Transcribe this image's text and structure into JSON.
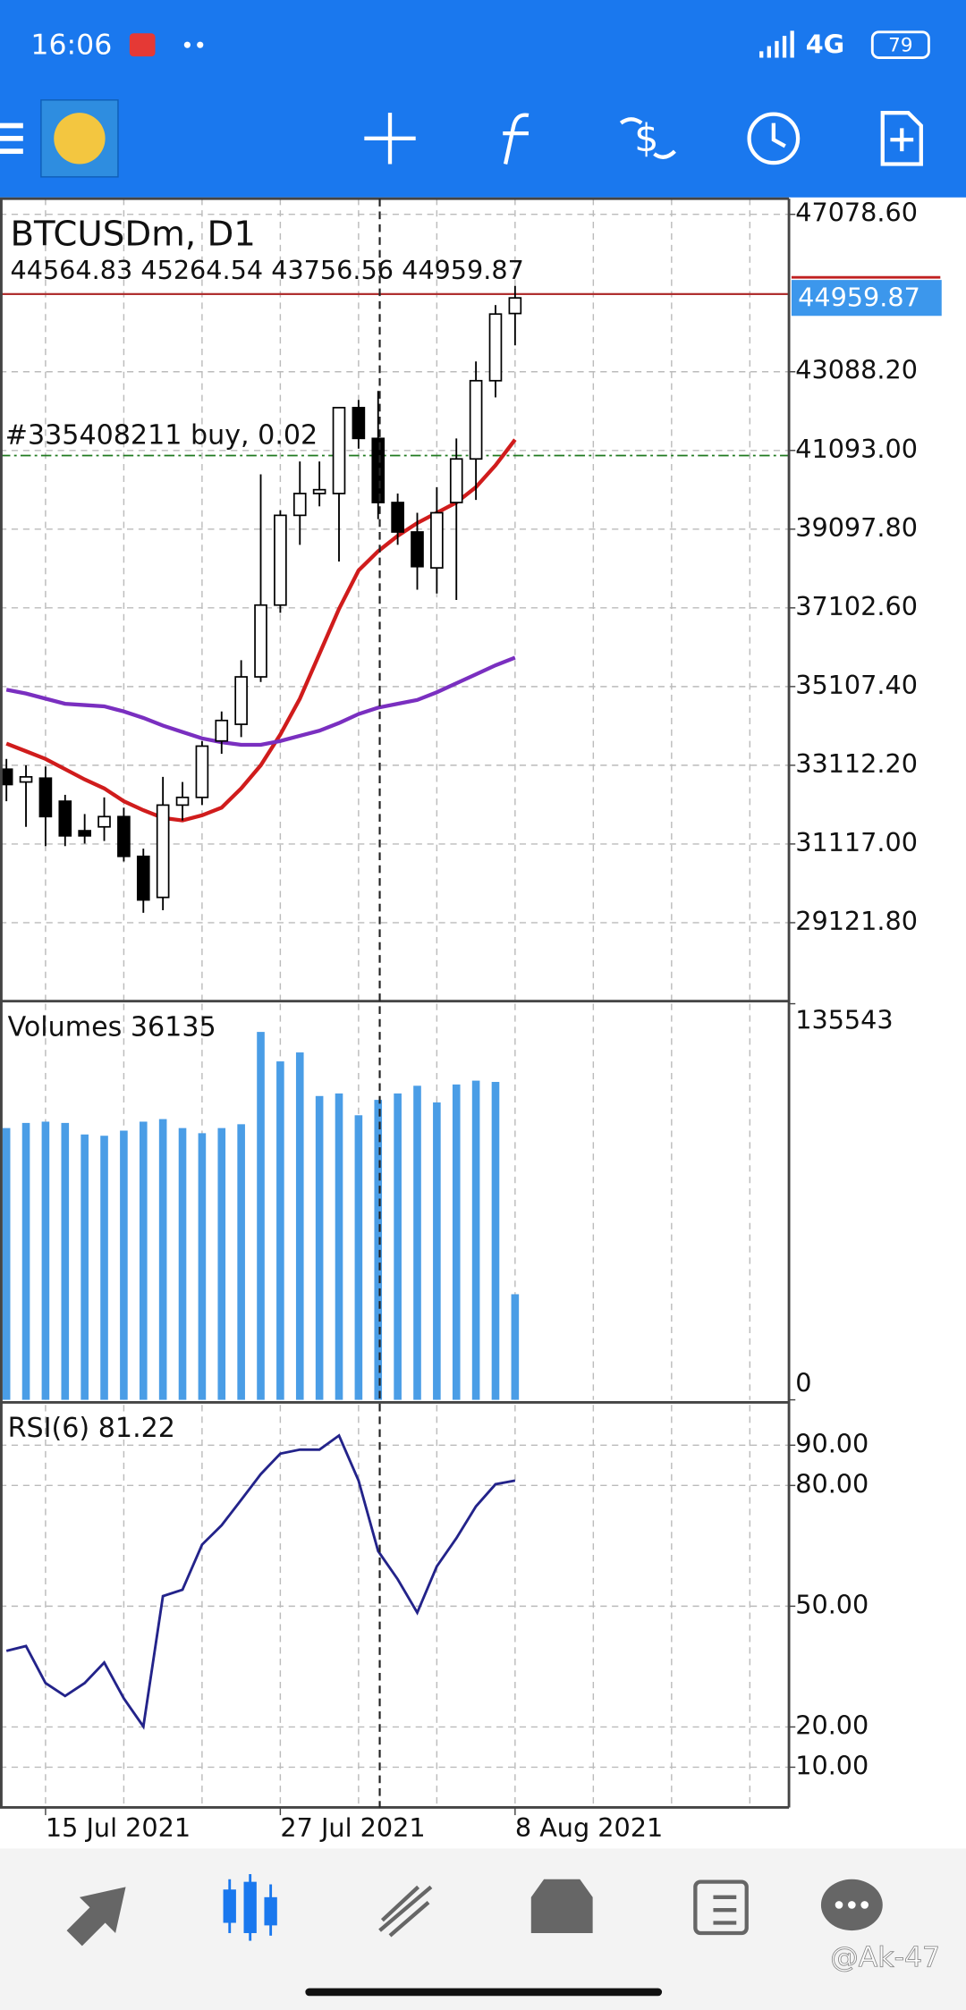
{
  "status_bar": {
    "time": "16:06",
    "network": "4G",
    "battery": "79"
  },
  "watermark": "@Ak-47",
  "chart_data": [
    {
      "type": "candlestick",
      "title": "BTCUSDm, D1",
      "ohlc_label": "44564.83 45264.54 43756.56 44959.87",
      "open": [
        33013,
        32688,
        32786,
        32201,
        31453,
        31551,
        31811,
        30803,
        29763,
        32103,
        32298,
        33728,
        34151,
        35353,
        37173,
        39448,
        40001,
        40001,
        42178,
        41398,
        39773,
        39026,
        38116,
        39773,
        40878,
        42861,
        44564.83
      ],
      "high": [
        33273,
        33111,
        33078,
        32363,
        31876,
        32298,
        32038,
        30998,
        32818,
        32688,
        33728,
        34476,
        35776,
        40488,
        39578,
        40813,
        40813,
        42178,
        42373,
        42601,
        40001,
        39513,
        40163,
        41398,
        43348,
        44778,
        45264.54
      ],
      "low": [
        32201,
        31551,
        31063,
        31063,
        31128,
        31193,
        30673,
        29373,
        29438,
        31713,
        32103,
        33403,
        33826,
        35223,
        36978,
        38701,
        39676,
        38278,
        41138,
        39351,
        38701,
        37563,
        37466,
        37303,
        39838,
        42438,
        43756.56
      ],
      "close": [
        32623,
        32818,
        31811,
        31323,
        31323,
        31811,
        30803,
        29698,
        32103,
        32298,
        33598,
        34248,
        35353,
        37173,
        39448,
        40001,
        40098,
        42178,
        41398,
        39773,
        39026,
        38148,
        39513,
        40878,
        42861,
        44551,
        44959.87
      ],
      "series": [
        {
          "color": "#d01c1c",
          "values": [
            33663,
            33468,
            33273,
            33013,
            32753,
            32526,
            32201,
            31973,
            31778,
            31713,
            31843,
            32038,
            32526,
            33111,
            33891,
            34801,
            35938,
            37076,
            38051,
            38538,
            38928,
            39253,
            39513,
            39773,
            40163,
            40716,
            41366
          ]
        },
        {
          "color": "#7a2fc0",
          "values": [
            35028,
            34931,
            34801,
            34671,
            34638,
            34606,
            34476,
            34313,
            34118,
            33956,
            33793,
            33696,
            33631,
            33631,
            33728,
            33858,
            33988,
            34183,
            34411,
            34573,
            34671,
            34768,
            34963,
            35191,
            35418,
            35646,
            35841
          ]
        }
      ],
      "last_price": {
        "value": 44959.87,
        "label": "44959.87"
      },
      "order_line": {
        "value": 41093,
        "label": "#335408211 buy, 0.02"
      },
      "ylim": [
        27165,
        47475
      ],
      "yticks": [
        {
          "value": 47078.6,
          "label": "47078.60"
        },
        {
          "value": 43088.2,
          "label": "43088.20"
        },
        {
          "value": 41093,
          "label": "41093.00"
        },
        {
          "value": 39097.8,
          "label": "39097.80"
        },
        {
          "value": 37102.6,
          "label": "37102.60"
        },
        {
          "value": 35107.4,
          "label": "35107.40"
        },
        {
          "value": 33112.2,
          "label": "33112.20"
        },
        {
          "value": 31117,
          "label": "31117.00"
        },
        {
          "value": 29121.8,
          "label": "29121.80"
        }
      ],
      "grid": true
    },
    {
      "type": "bar",
      "title": "Volumes 36135",
      "color": "#4a9de6",
      "values": [
        92994,
        94748,
        95187,
        94748,
        90801,
        90362,
        92117,
        95187,
        96064,
        92994,
        91239,
        92994,
        94310,
        125893,
        115804,
        118874,
        103960,
        104837,
        97380,
        102644,
        104837,
        107469,
        101767,
        107908,
        109224,
        108785,
        36135
      ],
      "ylim": [
        0,
        135543
      ],
      "yticks": [
        0,
        135543
      ]
    },
    {
      "type": "line",
      "title": "RSI(6) 81.22",
      "color": "#23238a",
      "categories": [
        null,
        null,
        "15 Jul 2021",
        null,
        null,
        null,
        null,
        null,
        null,
        null,
        null,
        null,
        null,
        null,
        "27 Jul 2021",
        null,
        null,
        null,
        null,
        null,
        null,
        null,
        null,
        null,
        null,
        null,
        "8 Aug 2021"
      ],
      "values": [
        38.9,
        40.1,
        30.9,
        27.7,
        30.9,
        36.0,
        27.1,
        20.1,
        52.5,
        54.1,
        65.3,
        70.1,
        76.4,
        82.8,
        87.9,
        88.9,
        88.9,
        92.4,
        81.2,
        63.7,
        56.7,
        48.4,
        59.9,
        66.9,
        74.8,
        80.3,
        81.22
      ],
      "ylim": [
        0,
        100
      ],
      "yticks": [
        {
          "value": 90,
          "label": "90.00"
        },
        {
          "value": 80,
          "label": "80.00"
        },
        {
          "value": 50,
          "label": "50.00"
        },
        {
          "value": 20,
          "label": "20.00"
        },
        {
          "value": 10,
          "label": "10.00"
        }
      ],
      "grid": true
    }
  ]
}
